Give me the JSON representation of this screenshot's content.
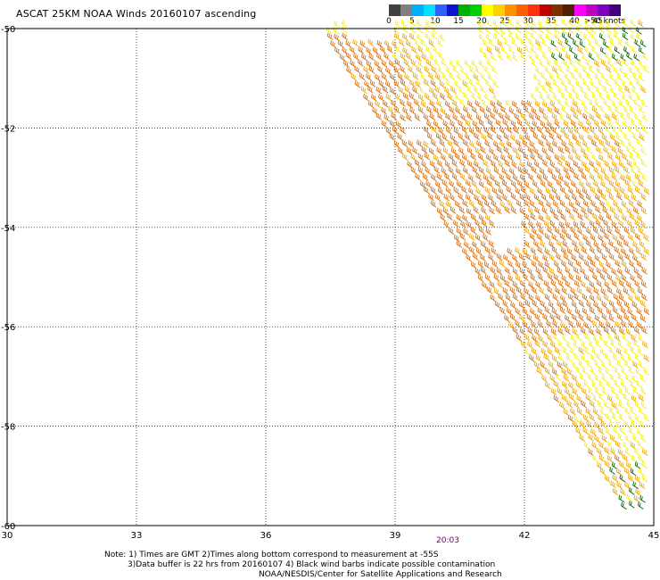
{
  "title": "ASCAT 25KM NOAA Winds 20160107 ascending",
  "legend": {
    "colors": [
      "#404040",
      "#808080",
      "#00b0ff",
      "#00e0ff",
      "#3060ff",
      "#1010d0",
      "#00b000",
      "#00d000",
      "#ffff00",
      "#ffd000",
      "#ff9000",
      "#ff6000",
      "#ff3010",
      "#c00000",
      "#803000",
      "#502000",
      "#ff00ff",
      "#c000c0",
      "#8000c0",
      "#400080"
    ],
    "labels": [
      "0",
      "5",
      "10",
      "15",
      "20",
      "25",
      "30",
      "35",
      "40",
      "45",
      ">50 knots"
    ],
    "units": "knots"
  },
  "map": {
    "lat_labels": [
      "-50",
      "-52",
      "-54",
      "-56",
      "-58",
      "-60"
    ],
    "lon_labels": [
      "30",
      "33",
      "36",
      "39",
      "42",
      "45"
    ],
    "lat_range": [
      -60,
      -50
    ],
    "lon_range": [
      30,
      45
    ],
    "grid": true,
    "pass_time": "20:03",
    "wind_colors": {
      "orange": "#d87010",
      "amber": "#f0a800",
      "yellow": "#f5f000",
      "contaminated": "#006000"
    }
  },
  "notes": {
    "line1": "Note: 1) Times are GMT 2)Times along bottom correspond to measurement at -55S",
    "line2": "3)Data buffer is 22 hrs from 20160107 4) Black wind barbs indicate possible contamination",
    "line3": "NOAA/NESDIS/Center for Satellite Applications and Research"
  }
}
